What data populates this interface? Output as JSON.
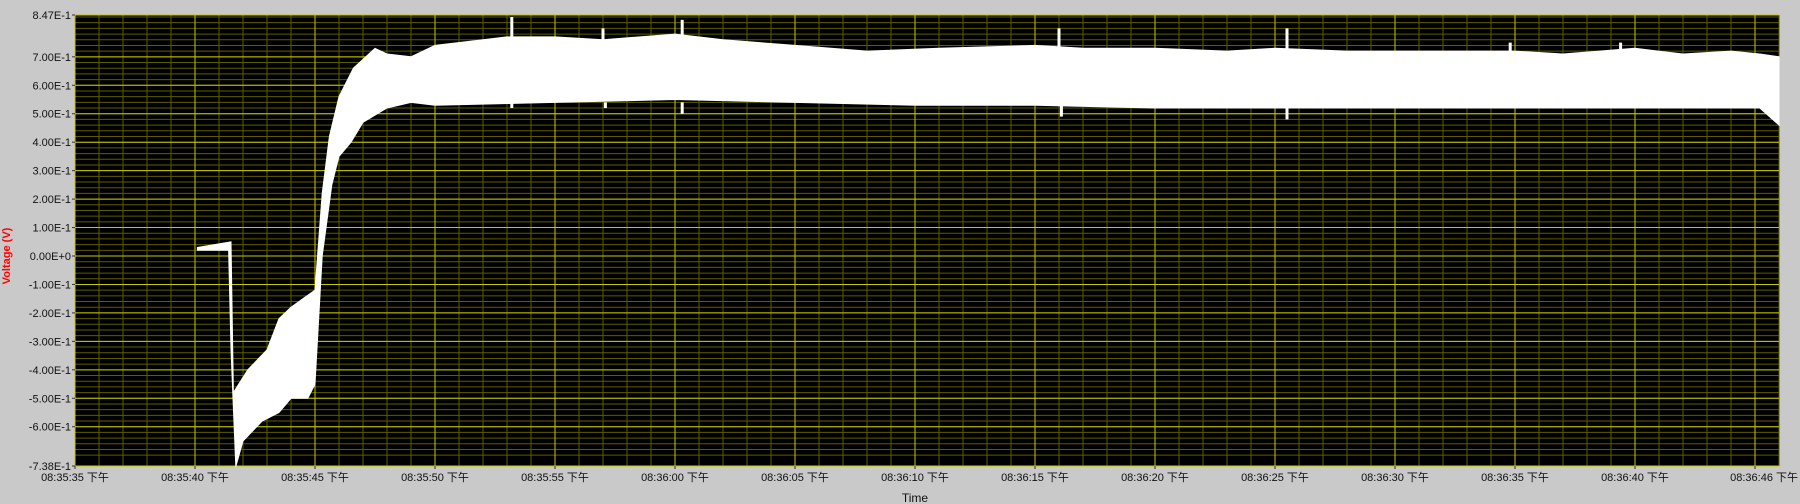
{
  "chart_data": {
    "type": "area",
    "ylabel": "Voltage (V)",
    "xlabel": "Time",
    "ylim": [
      -0.738,
      0.847
    ],
    "xlim": [
      0,
      71
    ],
    "y_ticks": [
      -0.738,
      -0.6,
      -0.5,
      -0.4,
      -0.3,
      -0.2,
      -0.1,
      0.0,
      0.1,
      0.2,
      0.3,
      0.4,
      0.5,
      0.6,
      0.7,
      0.847
    ],
    "y_tick_labels": [
      "-7.38E-1",
      "-6.00E-1",
      "-5.00E-1",
      "-4.00E-1",
      "-3.00E-1",
      "-2.00E-1",
      "-1.00E-1",
      "0.00E+0",
      "1.00E-1",
      "2.00E-1",
      "3.00E-1",
      "4.00E-1",
      "5.00E-1",
      "6.00E-1",
      "7.00E-1",
      "8.47E-1"
    ],
    "x_ticks": [
      0,
      5,
      10,
      15,
      20,
      25,
      30,
      35,
      40,
      45,
      50,
      55,
      60,
      65,
      70
    ],
    "x_tick_labels": [
      "08:35:35 下午",
      "08:35:40 下午",
      "08:35:45 下午",
      "08:35:50 下午",
      "08:35:55 下午",
      "08:36:00 下午",
      "08:36:05 下午",
      "08:36:10 下午",
      "08:36:15 下午",
      "08:36:20 下午",
      "08:36:25 下午",
      "08:36:30 下午",
      "08:36:35 下午",
      "08:36:40 下午",
      "08:36:46 下午"
    ],
    "grid": true,
    "series": [
      {
        "upper": [
          [
            5.1,
            0.03
          ],
          [
            6.5,
            0.05
          ],
          [
            6.6,
            -0.48
          ],
          [
            7.2,
            -0.4
          ],
          [
            8.0,
            -0.33
          ],
          [
            8.5,
            -0.22
          ],
          [
            9.0,
            -0.18
          ],
          [
            9.5,
            -0.15
          ],
          [
            10.0,
            -0.12
          ],
          [
            10.3,
            0.22
          ],
          [
            10.6,
            0.42
          ],
          [
            11.0,
            0.56
          ],
          [
            11.6,
            0.66
          ],
          [
            12.5,
            0.73
          ],
          [
            13.0,
            0.71
          ],
          [
            14.0,
            0.7
          ],
          [
            15.0,
            0.74
          ],
          [
            17.0,
            0.76
          ],
          [
            18.0,
            0.77
          ],
          [
            20.0,
            0.77
          ],
          [
            22.0,
            0.76
          ],
          [
            25.0,
            0.78
          ],
          [
            27.0,
            0.76
          ],
          [
            30.0,
            0.74
          ],
          [
            33.0,
            0.72
          ],
          [
            36.0,
            0.73
          ],
          [
            40.0,
            0.74
          ],
          [
            42.0,
            0.73
          ],
          [
            45.0,
            0.73
          ],
          [
            48.0,
            0.72
          ],
          [
            50.0,
            0.73
          ],
          [
            53.0,
            0.72
          ],
          [
            56.0,
            0.72
          ],
          [
            60.0,
            0.72
          ],
          [
            62.0,
            0.71
          ],
          [
            65.0,
            0.73
          ],
          [
            67.0,
            0.71
          ],
          [
            69.0,
            0.72
          ],
          [
            70.2,
            0.71
          ],
          [
            71.0,
            0.7
          ]
        ],
        "lower": [
          [
            5.1,
            0.02
          ],
          [
            6.4,
            0.02
          ],
          [
            6.5,
            -0.33
          ],
          [
            6.7,
            -0.74
          ],
          [
            7.0,
            -0.65
          ],
          [
            7.8,
            -0.58
          ],
          [
            8.5,
            -0.55
          ],
          [
            9.0,
            -0.5
          ],
          [
            9.7,
            -0.5
          ],
          [
            10.0,
            -0.45
          ],
          [
            10.3,
            0.0
          ],
          [
            10.7,
            0.25
          ],
          [
            11.0,
            0.35
          ],
          [
            11.5,
            0.4
          ],
          [
            12.0,
            0.47
          ],
          [
            13.0,
            0.52
          ],
          [
            14.0,
            0.54
          ],
          [
            15.0,
            0.53
          ],
          [
            20.0,
            0.54
          ],
          [
            25.0,
            0.55
          ],
          [
            30.0,
            0.54
          ],
          [
            35.0,
            0.53
          ],
          [
            40.0,
            0.53
          ],
          [
            45.0,
            0.52
          ],
          [
            50.0,
            0.52
          ],
          [
            55.0,
            0.52
          ],
          [
            60.0,
            0.52
          ],
          [
            65.0,
            0.52
          ],
          [
            68.0,
            0.52
          ],
          [
            70.2,
            0.52
          ],
          [
            71.0,
            0.46
          ]
        ],
        "spikes": [
          [
            18.2,
            0.84
          ],
          [
            22.0,
            0.8
          ],
          [
            25.3,
            0.83
          ],
          [
            41.0,
            0.8
          ],
          [
            50.5,
            0.8
          ],
          [
            59.8,
            0.75
          ],
          [
            64.4,
            0.75
          ],
          [
            18.2,
            0.52
          ],
          [
            22.1,
            0.52
          ],
          [
            25.3,
            0.5
          ],
          [
            41.1,
            0.49
          ],
          [
            50.5,
            0.48
          ]
        ]
      }
    ]
  },
  "colors": {
    "plot_background": "#000000",
    "major_grid": "#c8c800",
    "minor_grid": "#5c5c00",
    "trace": "#ffffff",
    "ylabel": "#ff0000",
    "frame_background": "#c9c9c9"
  }
}
